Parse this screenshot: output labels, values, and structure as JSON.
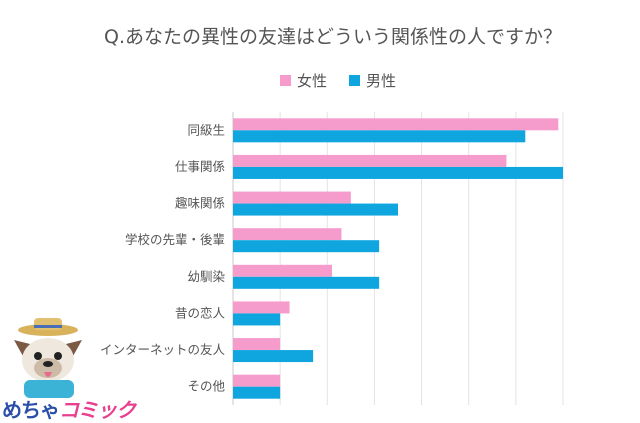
{
  "chart_data": {
    "type": "bar",
    "orientation": "horizontal",
    "title": "Q.あなたの異性の友達はどういう関係性の人ですか？",
    "categories": [
      "同級生",
      "仕事関係",
      "趣味関係",
      "学校の先輩・後輩",
      "幼馴染",
      "昔の恋人",
      "インターネットの友人",
      "その他"
    ],
    "series": [
      {
        "name": "女性",
        "color": "#f59ccd",
        "values": [
          69,
          58,
          25,
          23,
          21,
          12,
          10,
          10
        ]
      },
      {
        "name": "男性",
        "color": "#0fa6e0",
        "values": [
          62,
          70,
          35,
          31,
          31,
          10,
          17,
          10
        ]
      }
    ],
    "xlim": [
      0,
      70
    ],
    "grid": true,
    "legend_position": "top-center"
  },
  "logo": {
    "part1": "めちゃ",
    "part2": "コミック"
  }
}
